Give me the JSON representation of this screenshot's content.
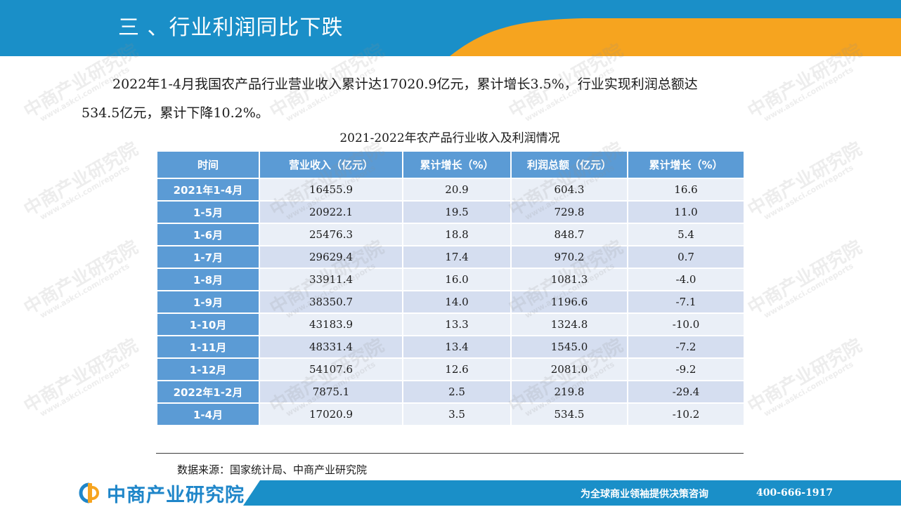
{
  "header": {
    "title": "三 、行业利润同比下跌",
    "colors": {
      "blue": "#1a8fc8",
      "orange": "#f6a41f"
    }
  },
  "intro": {
    "line1": "2022年1-4月我国农产品行业营业收入累计达17020.9亿元，累计增长3.5%，行业实现利润总额达",
    "line2": "534.5亿元，累计下降10.2%。"
  },
  "table": {
    "title": "2021-2022年农产品行业收入及利润情况",
    "headers": [
      "时间",
      "营业收入（亿元）",
      "累计增长（%）",
      "利润总额（亿元）",
      "累计增长（%）"
    ],
    "rows": [
      [
        "2021年1-4月",
        "16455.9",
        "20.9",
        "604.3",
        "16.6"
      ],
      [
        "1-5月",
        "20922.1",
        "19.5",
        "729.8",
        "11.0"
      ],
      [
        "1-6月",
        "25476.3",
        "18.8",
        "848.7",
        "5.4"
      ],
      [
        "1-7月",
        "29629.4",
        "17.4",
        "970.2",
        "0.7"
      ],
      [
        "1-8月",
        "33911.4",
        "16.0",
        "1081.3",
        "-4.0"
      ],
      [
        "1-9月",
        "38350.7",
        "14.0",
        "1196.6",
        "-7.1"
      ],
      [
        "1-10月",
        "43183.9",
        "13.3",
        "1324.8",
        "-10.0"
      ],
      [
        "1-11月",
        "48331.4",
        "13.4",
        "1545.0",
        "-7.2"
      ],
      [
        "1-12月",
        "54107.6",
        "12.6",
        "2081.0",
        "-9.2"
      ],
      [
        "2022年1-2月",
        "7875.1",
        "2.5",
        "219.8",
        "-29.4"
      ],
      [
        "1-4月",
        "17020.9",
        "3.5",
        "534.5",
        "-10.2"
      ]
    ],
    "colors": {
      "header": "#5b9bd5",
      "row_dark": "#d5def0",
      "row_light": "#eaeff7"
    }
  },
  "source": "数据来源：国家统计局、中商产业研究院",
  "footer": {
    "brand": "中商产业研究院",
    "slogan": "为全球商业领袖提供决策咨询",
    "phone": "400-666-1917",
    "logo_icon": "brand-logo-icon"
  },
  "watermark": {
    "big": "中商产业研究院",
    "small": "www.askci.com/reports"
  }
}
